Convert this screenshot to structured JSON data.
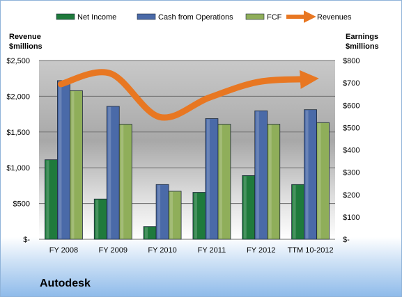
{
  "chart_data": {
    "type": "bar",
    "categories": [
      "FY 2008",
      "FY 2009",
      "FY 2010",
      "FY 2011",
      "FY 2012",
      "TTM 10-2012"
    ],
    "series": [
      {
        "name": "Net Income",
        "axis": "right",
        "color": "#1f7a3c",
        "values": [
          356,
          180,
          57,
          210,
          285,
          245
        ]
      },
      {
        "name": "Cash from Operations",
        "axis": "right",
        "color": "#4a6aa8",
        "values": [
          710,
          595,
          245,
          540,
          575,
          580
        ]
      },
      {
        "name": "FCF",
        "axis": "right",
        "color": "#8fae5a",
        "values": [
          665,
          515,
          215,
          515,
          515,
          522
        ]
      },
      {
        "name": "Revenues",
        "axis": "left",
        "type": "line",
        "color": "#e87722",
        "values": [
          2170,
          2320,
          1710,
          1980,
          2200,
          2240
        ]
      }
    ],
    "left_axis": {
      "label_line1": "Revenue",
      "label_line2": "$millions",
      "ylim": [
        0,
        2500
      ],
      "ticks": [
        {
          "v": 0,
          "t": "$-"
        },
        {
          "v": 500,
          "t": "$500"
        },
        {
          "v": 1000,
          "t": "$1,000"
        },
        {
          "v": 1500,
          "t": "$1,500"
        },
        {
          "v": 2000,
          "t": "$2,000"
        },
        {
          "v": 2500,
          "t": "$2,500"
        }
      ]
    },
    "right_axis": {
      "label_line1": "Earnings",
      "label_line2": "$millions",
      "ylim": [
        0,
        800
      ],
      "ticks": [
        {
          "v": 0,
          "t": "$-"
        },
        {
          "v": 100,
          "t": "$100"
        },
        {
          "v": 200,
          "t": "$200"
        },
        {
          "v": 300,
          "t": "$300"
        },
        {
          "v": 400,
          "t": "$400"
        },
        {
          "v": 500,
          "t": "$500"
        },
        {
          "v": 600,
          "t": "$600"
        },
        {
          "v": 700,
          "t": "$700"
        },
        {
          "v": 800,
          "t": "$800"
        }
      ]
    },
    "legend_position": "top",
    "grid": true
  },
  "company": "Autodesk"
}
